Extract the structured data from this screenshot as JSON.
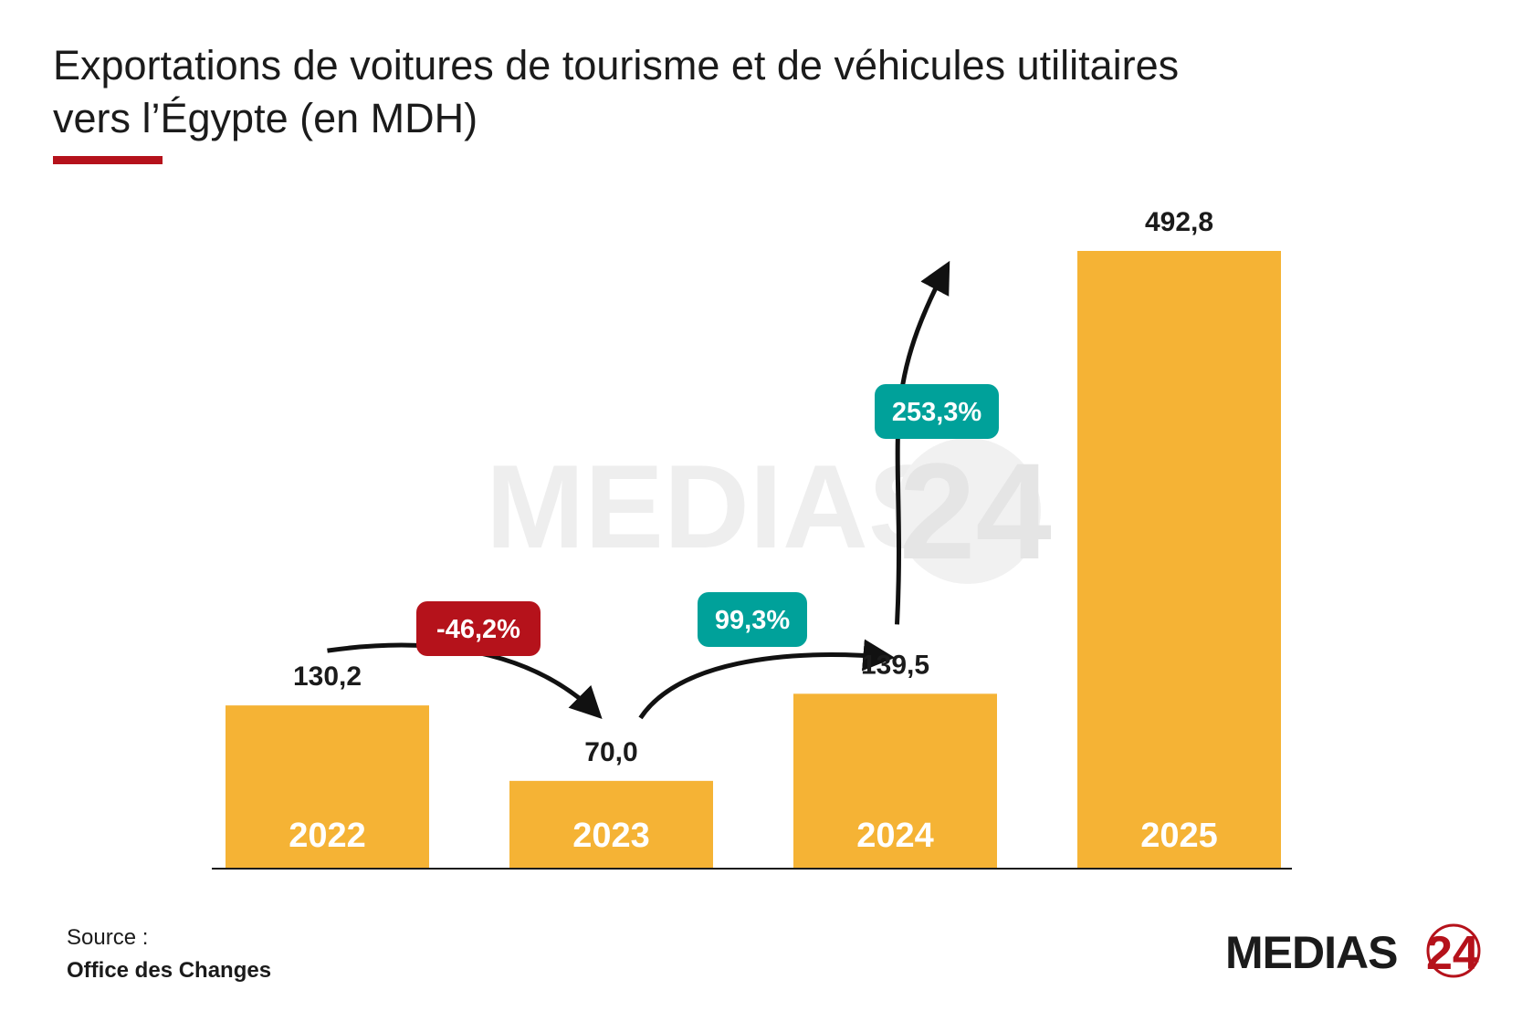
{
  "title": {
    "line1": "Exportations de voitures de tourisme et de véhicules utilitaires",
    "line2_main": "vers l’Égypte",
    "line2_unit": " (en MDH)"
  },
  "colors": {
    "bar": "#F5B335",
    "accent_red": "#B5121B",
    "badge_teal": "#00A19A",
    "text": "#1B1B1B"
  },
  "chart_data": {
    "type": "bar",
    "categories": [
      "2022",
      "2023",
      "2024",
      "2025"
    ],
    "values": [
      130.2,
      70.0,
      139.5,
      492.8
    ],
    "value_labels": [
      "130,2",
      "70,0",
      "139,5",
      "492,8"
    ],
    "ylim": [
      0,
      492.8
    ],
    "grid": false,
    "legend": "none",
    "annotations": [
      {
        "from": "2022",
        "to": "2023",
        "text": "-46,2%",
        "color": "#B5121B"
      },
      {
        "from": "2023",
        "to": "2024",
        "text": "99,3%",
        "color": "#00A19A"
      },
      {
        "from": "2024",
        "to": "2025",
        "text": "253,3%",
        "color": "#00A19A"
      }
    ]
  },
  "source": {
    "label": "Source :",
    "value": "Office des Changes"
  },
  "logo": {
    "text": "MEDIAS",
    "number": "24"
  },
  "watermark": {
    "text": "MEDIAS",
    "number": "24"
  }
}
